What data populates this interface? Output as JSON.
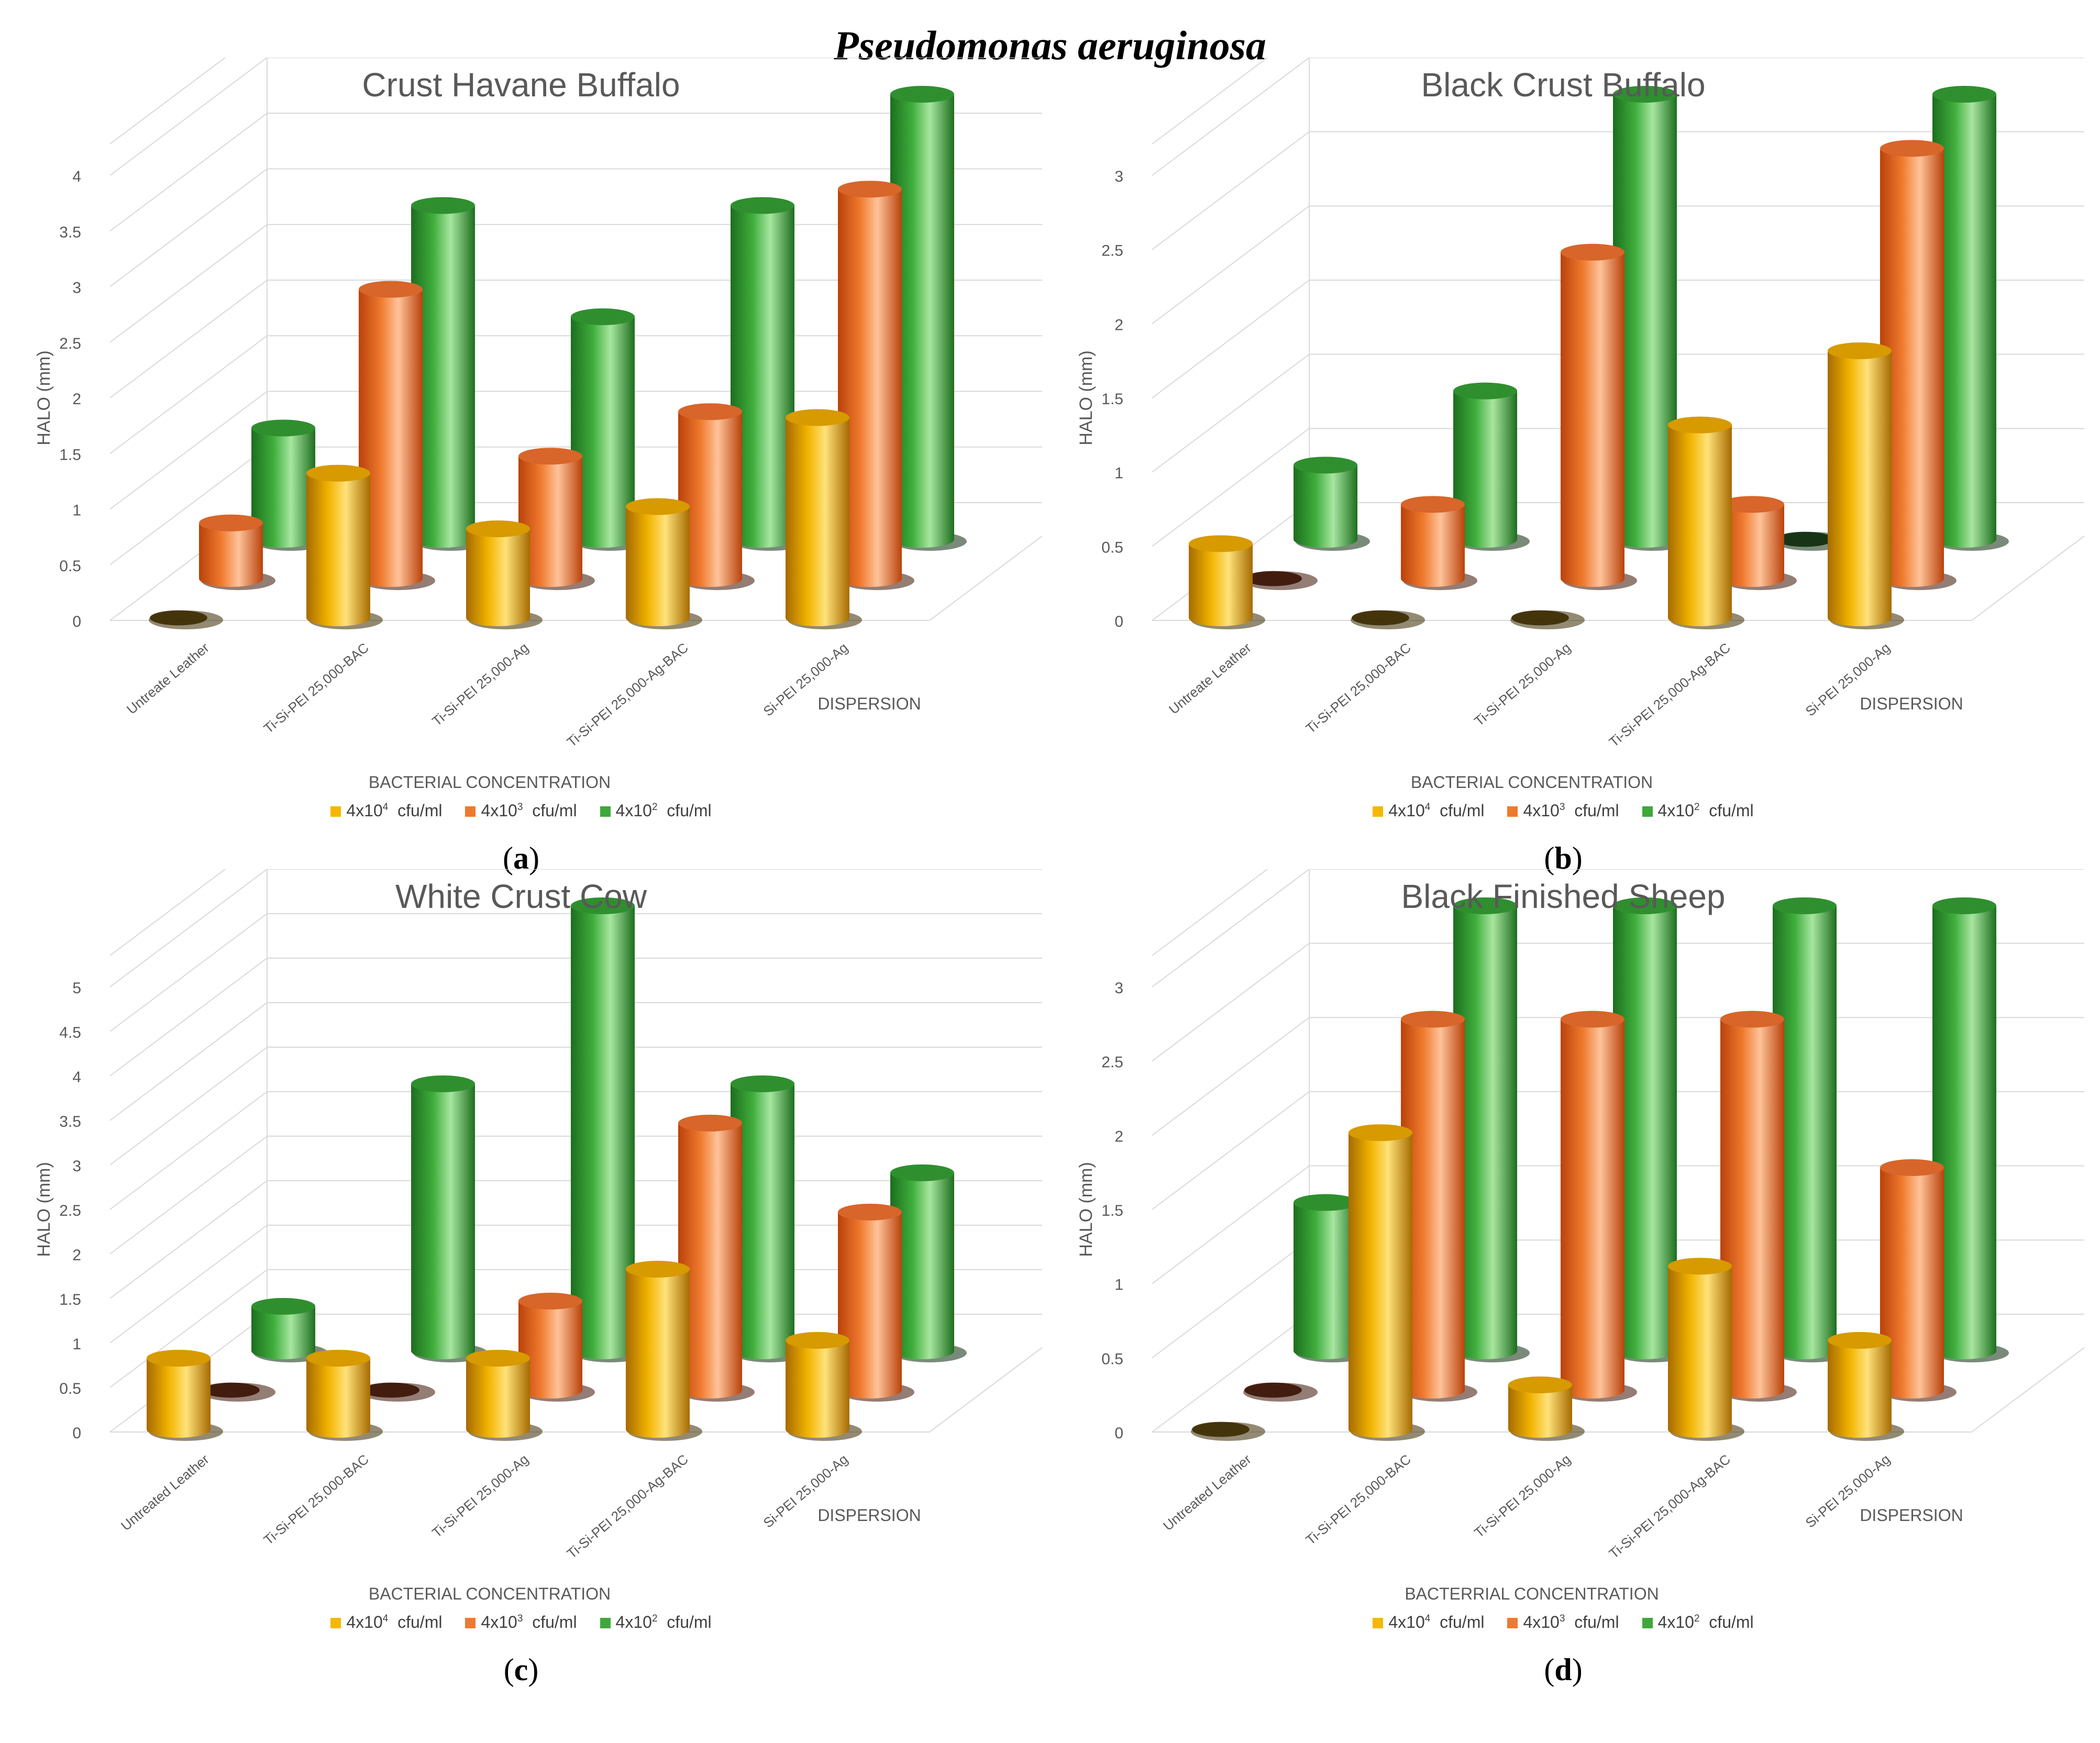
{
  "figure_title": "Pseudomonas aeruginosa",
  "colors": {
    "conc1": "#f5b800",
    "conc2": "#ee7a2e",
    "conc3": "#3ea83a"
  },
  "chart_data": [
    {
      "panel_label": "a",
      "type": "bar",
      "title": "Crust Havane Buffalo",
      "ylabel": "HALO (mm)",
      "xlabel": "BACTERIAL CONCENTRATION",
      "zlabel": "DISPERSION",
      "ylim": [
        0,
        4
      ],
      "yticks": [
        0,
        0.5,
        1,
        1.5,
        2,
        2.5,
        3,
        3.5,
        4
      ],
      "categories": [
        "Untreate Leather",
        "Ti-Si-PEI 25,000-BAC",
        "Ti-Si-PEI 25,000-Ag",
        "Ti-Si-PEI 25,000-Ag-BAC",
        "Si-PEI 25,000-Ag"
      ],
      "series": [
        {
          "name_base": "4x10",
          "name_exp": "4",
          "name_unit": "cfu/ml",
          "values": [
            0,
            1.3,
            0.8,
            1.0,
            1.8
          ]
        },
        {
          "name_base": "4x10",
          "name_exp": "3",
          "name_unit": "cfu/ml",
          "values": [
            0.5,
            2.6,
            1.1,
            1.5,
            3.5
          ]
        },
        {
          "name_base": "4x10",
          "name_exp": "2",
          "name_unit": "cfu/ml",
          "values": [
            1.0,
            3.0,
            2.0,
            3.0,
            4.0
          ]
        }
      ]
    },
    {
      "panel_label": "b",
      "type": "bar",
      "title": "Black Crust Buffalo",
      "ylabel": "HALO (mm)",
      "xlabel": "BACTERIAL CONCENTRATION",
      "zlabel": "DISPERSION",
      "ylim": [
        0,
        3
      ],
      "yticks": [
        0,
        0.5,
        1,
        1.5,
        2,
        2.5,
        3
      ],
      "categories": [
        "Untreate Leather",
        "Ti-Si-PEI 25,000-BAC",
        "Ti-Si-PEI 25,000-Ag",
        "Ti-Si-PEI 25,000-Ag-BAC",
        "Si-PEI 25,000-Ag"
      ],
      "series": [
        {
          "name_base": "4x10",
          "name_exp": "4",
          "name_unit": "cfu/ml",
          "values": [
            0.5,
            0,
            0,
            1.3,
            1.8
          ]
        },
        {
          "name_base": "4x10",
          "name_exp": "3",
          "name_unit": "cfu/ml",
          "values": [
            0,
            0.5,
            2.2,
            0.5,
            2.9
          ]
        },
        {
          "name_base": "4x10",
          "name_exp": "2",
          "name_unit": "cfu/ml",
          "values": [
            0.5,
            1.0,
            3.0,
            0,
            3.0
          ]
        }
      ]
    },
    {
      "panel_label": "c",
      "type": "bar",
      "title": "White Crust Cow",
      "ylabel": "HALO (mm)",
      "xlabel": "BACTERIAL CONCENTRATION",
      "zlabel": "DISPERSION",
      "ylim": [
        0,
        5
      ],
      "yticks": [
        0,
        0.5,
        1,
        1.5,
        2,
        2.5,
        3,
        3.5,
        4,
        4.5,
        5
      ],
      "categories": [
        "Untreated Leather",
        "Ti-Si-PEI 25,000-BAC",
        "Ti-Si-PEI 25,000-Ag",
        "Ti-Si-PEI 25,000-Ag-BAC",
        "Si-PEI 25,000-Ag"
      ],
      "series": [
        {
          "name_base": "4x10",
          "name_exp": "4",
          "name_unit": "cfu/ml",
          "values": [
            0.8,
            0.8,
            0.8,
            1.8,
            1.0
          ]
        },
        {
          "name_base": "4x10",
          "name_exp": "3",
          "name_unit": "cfu/ml",
          "values": [
            0,
            0,
            1.0,
            3.0,
            2.0
          ]
        },
        {
          "name_base": "4x10",
          "name_exp": "2",
          "name_unit": "cfu/ml",
          "values": [
            0.5,
            3.0,
            5.0,
            3.0,
            2.0
          ]
        }
      ]
    },
    {
      "panel_label": "d",
      "type": "bar",
      "title": "Black Finished Sheep",
      "ylabel": "HALO (mm)",
      "xlabel": "BACTERRIAL CONCENTRATION",
      "zlabel": "DISPERSION",
      "ylim": [
        0,
        3
      ],
      "yticks": [
        0,
        0.5,
        1,
        1.5,
        2,
        2.5,
        3
      ],
      "categories": [
        "Untreated Leather",
        "Ti-Si-PEI 25,000-BAC",
        "Ti-Si-PEI 25,000-Ag",
        "Ti-Si-PEI 25,000-Ag-BAC",
        "Si-PEI 25,000-Ag"
      ],
      "series": [
        {
          "name_base": "4x10",
          "name_exp": "4",
          "name_unit": "cfu/ml",
          "values": [
            0,
            2.0,
            0.3,
            1.1,
            0.6
          ]
        },
        {
          "name_base": "4x10",
          "name_exp": "3",
          "name_unit": "cfu/ml",
          "values": [
            0,
            2.5,
            2.5,
            2.5,
            1.5
          ]
        },
        {
          "name_base": "4x10",
          "name_exp": "2",
          "name_unit": "cfu/ml",
          "values": [
            1.0,
            3.0,
            3.0,
            3.0,
            3.0
          ]
        }
      ]
    }
  ]
}
